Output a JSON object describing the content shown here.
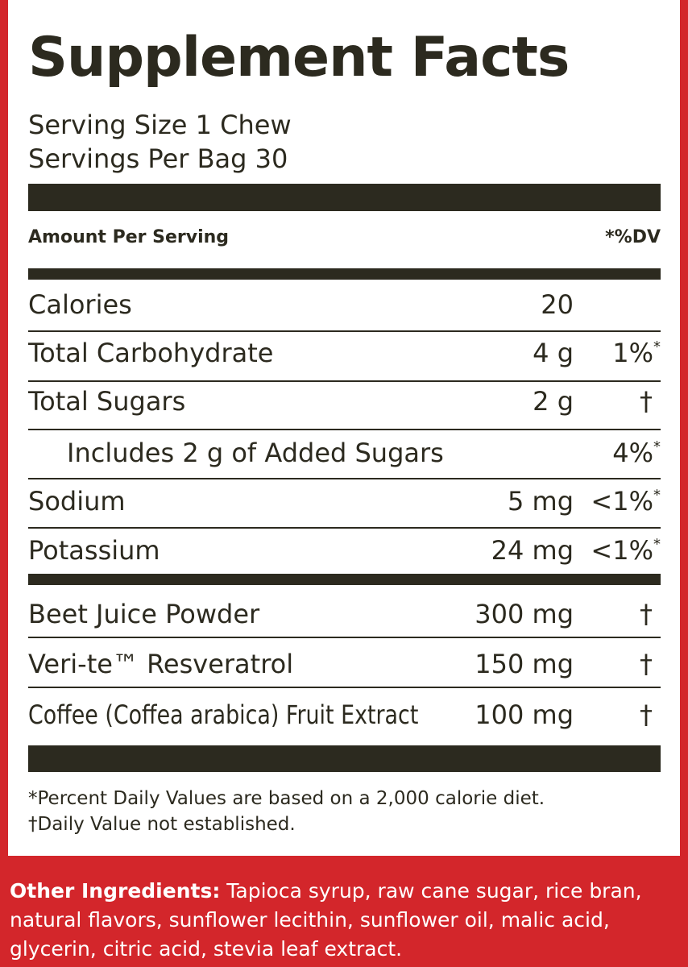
{
  "label": {
    "title": "Supplement Facts",
    "serving_size": "Serving Size 1 Chew",
    "servings_per_container": "Servings Per Bag 30",
    "header": {
      "amount": "Amount Per Serving",
      "dv": "*%DV"
    },
    "nutrients": [
      {
        "name": "Calories",
        "amount": "20"
      },
      {
        "name": "Total Carbohydrate",
        "amount": "4 g",
        "dv": "1%",
        "dv_note": "*"
      },
      {
        "name": "Total Sugars",
        "amount": "2 g",
        "dv": "†"
      },
      {
        "name": "Includes 2 g of Added Sugars",
        "dv": "4%",
        "dv_note": "*"
      },
      {
        "name": "Sodium",
        "amount": "5 mg",
        "dv": "<1%",
        "dv_note": "*"
      },
      {
        "name": "Potassium",
        "amount": "24 mg",
        "dv": "<1%",
        "dv_note": "*"
      }
    ],
    "ingredients": [
      {
        "name": "Beet Juice Powder",
        "amount": "300 mg",
        "dv": "†"
      },
      {
        "name": "Veri-te™ Resveratrol",
        "amount": "150 mg",
        "dv": "†"
      },
      {
        "name": "Coffee (Coffea arabica) Fruit Extract",
        "amount": "100 mg",
        "dv": "†"
      }
    ],
    "footnotes": [
      "*Percent Daily Values are based on a 2,000 calorie diet.",
      "†Daily Value not established."
    ]
  },
  "other_ingredients": {
    "label": "Other Ingredients:",
    "text": "Tapioca syrup, raw cane sugar, rice bran, natural flavors, sunflower lecithin, sunflower oil, malic acid, glycerin, citric acid, stevia leaf extract."
  }
}
